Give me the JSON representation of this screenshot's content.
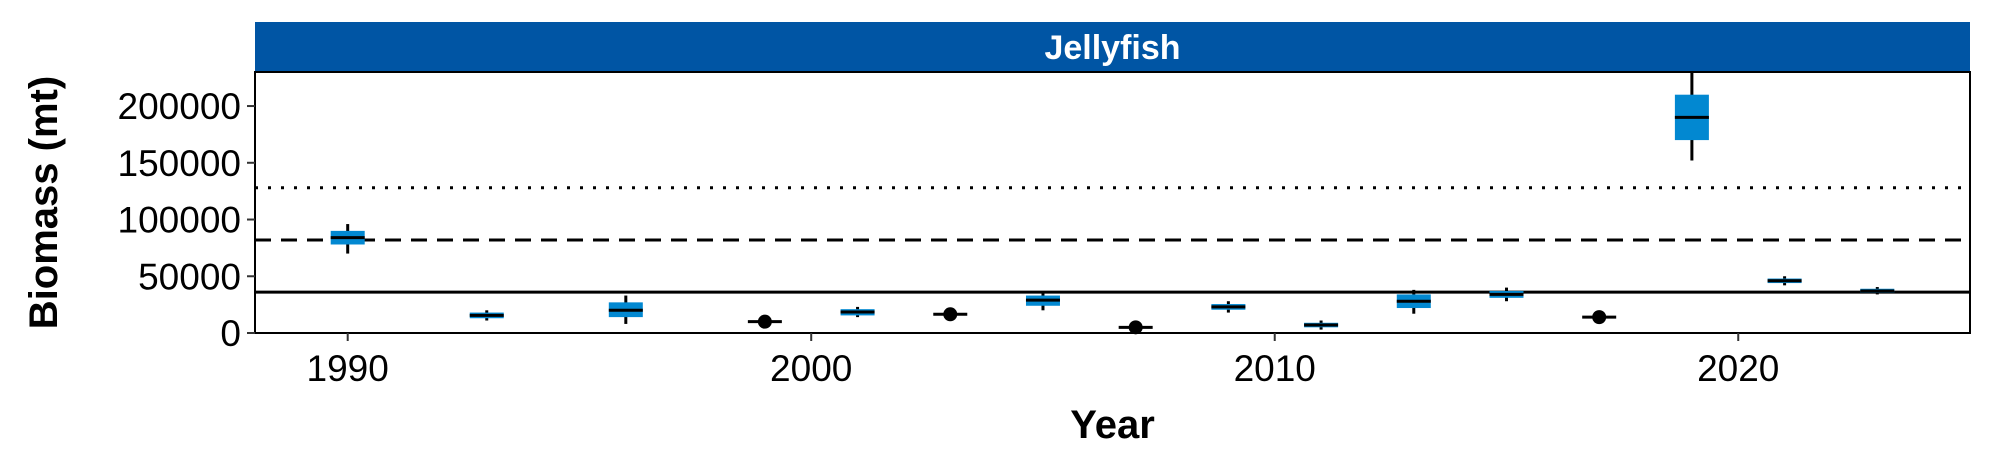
{
  "chart_data": {
    "type": "boxplot",
    "panel_title": "Jellyfish",
    "xlabel": "Year",
    "ylabel": "Biomass (mt)",
    "xlim": [
      1988,
      2025
    ],
    "ylim": [
      0,
      230000
    ],
    "x_ticks": [
      1990,
      2000,
      2010,
      2020
    ],
    "y_ticks": [
      0,
      50000,
      100000,
      150000,
      200000
    ],
    "grid": false,
    "reference_lines": [
      {
        "style": "solid",
        "value": 36000
      },
      {
        "style": "dashed",
        "value": 82000
      },
      {
        "style": "dotted",
        "value": 128000
      }
    ],
    "boxes": [
      {
        "year": 1990,
        "min": 70000,
        "q1": 78000,
        "median": 84000,
        "q3": 90000,
        "max": 96000
      },
      {
        "year": 1993,
        "min": 11000,
        "q1": 13000,
        "median": 15500,
        "q3": 18000,
        "max": 20000
      },
      {
        "year": 1996,
        "min": 8000,
        "q1": 14000,
        "median": 20000,
        "q3": 27000,
        "max": 33000
      },
      {
        "year": 1999,
        "point": 10000
      },
      {
        "year": 2001,
        "min": 14000,
        "q1": 15500,
        "median": 18500,
        "q3": 21000,
        "max": 23000
      },
      {
        "year": 2003,
        "point": 16500
      },
      {
        "year": 2005,
        "min": 20000,
        "q1": 24000,
        "median": 29000,
        "q3": 33000,
        "max": 37000
      },
      {
        "year": 2007,
        "point": 5000
      },
      {
        "year": 2009,
        "min": 18000,
        "q1": 20500,
        "median": 23000,
        "q3": 25500,
        "max": 28000
      },
      {
        "year": 2011,
        "min": 3000,
        "q1": 5000,
        "median": 7000,
        "q3": 9000,
        "max": 11000
      },
      {
        "year": 2013,
        "min": 17000,
        "q1": 22000,
        "median": 28000,
        "q3": 34000,
        "max": 38000
      },
      {
        "year": 2015,
        "min": 28000,
        "q1": 31000,
        "median": 34000,
        "q3": 37000,
        "max": 40000
      },
      {
        "year": 2017,
        "point": 14000
      },
      {
        "year": 2019,
        "min": 152000,
        "q1": 170000,
        "median": 190000,
        "q3": 210000,
        "max": 230000
      },
      {
        "year": 2021,
        "min": 42000,
        "q1": 44000,
        "median": 46000,
        "q3": 48000,
        "max": 50000
      },
      {
        "year": 2023,
        "min": 34000,
        "q1": 35500,
        "median": 37000,
        "q3": 39000,
        "max": 40500
      }
    ],
    "colors": {
      "strip": "#0055A4",
      "box_fill": "#0288D1",
      "line": "#000000"
    }
  }
}
